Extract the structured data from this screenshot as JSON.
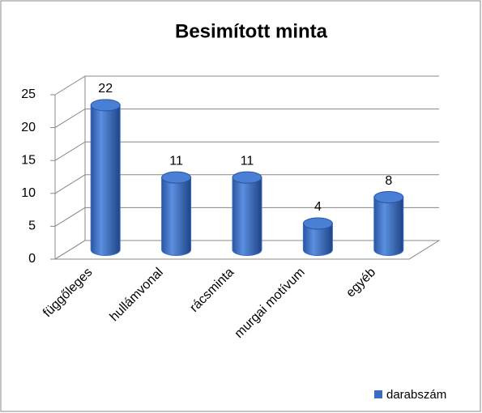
{
  "chart_data": {
    "type": "bar",
    "title": "Besimított minta",
    "categories": [
      "függőleges",
      "hullámvonal",
      "rácsminta",
      "murgai motívum",
      "egyéb"
    ],
    "series": [
      {
        "name": "darabszám",
        "color": "#3a6cc4",
        "values": [
          22,
          11,
          11,
          4,
          8
        ]
      }
    ],
    "ylim": [
      0,
      25
    ],
    "yticks": [
      0,
      5,
      10,
      15,
      20,
      25
    ],
    "grid": true,
    "legend": "bottom-right"
  }
}
